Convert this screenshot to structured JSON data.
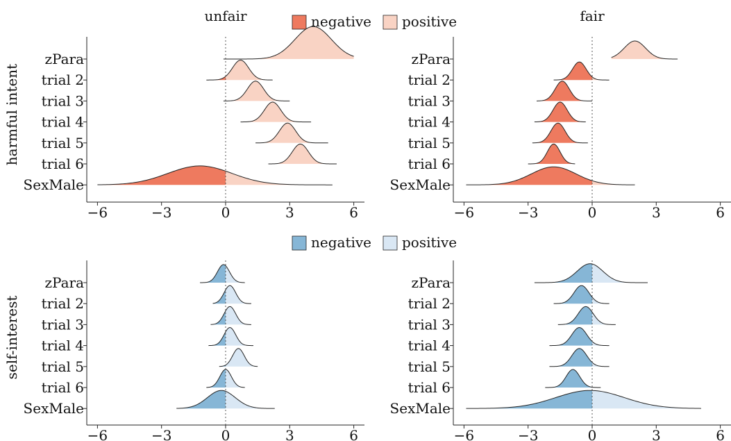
{
  "legends": [
    {
      "negative": "negative",
      "positive": "positive",
      "neg_color": "#ee7a5f",
      "pos_color": "#f9d3c4"
    },
    {
      "negative": "negative",
      "positive": "positive",
      "neg_color": "#86b6d6",
      "pos_color": "#d9e7f4"
    }
  ],
  "column_titles": [
    "unfair",
    "fair"
  ],
  "row_titles": [
    "harmful intent",
    "self-interest"
  ],
  "chart_data": [
    {
      "type": "ridgeline",
      "panel": "harmful intent / unfair",
      "row": 0,
      "col": 0,
      "title": "unfair",
      "ylabel": "harmful intent",
      "xlim": [
        -6.5,
        6.5
      ],
      "xticks": [
        -6,
        -3,
        0,
        3,
        6
      ],
      "xtick_labels": [
        "−6",
        "−3",
        "0",
        "3",
        "6"
      ],
      "reference_line": 0,
      "ridges": [
        {
          "label": "zPara",
          "mean": 4.1,
          "sd": 0.85,
          "min": -0.1,
          "max": 6.0,
          "height": 1.8
        },
        {
          "label": "trial 2",
          "mean": 0.7,
          "sd": 0.38,
          "min": -0.9,
          "max": 2.2,
          "height": 1.1
        },
        {
          "label": "trial 3",
          "mean": 1.4,
          "sd": 0.38,
          "min": -0.1,
          "max": 3.0,
          "height": 1.1
        },
        {
          "label": "trial 4",
          "mean": 2.2,
          "sd": 0.38,
          "min": 0.7,
          "max": 4.0,
          "height": 1.1
        },
        {
          "label": "trial 5",
          "mean": 2.9,
          "sd": 0.38,
          "min": 1.4,
          "max": 4.8,
          "height": 1.1
        },
        {
          "label": "trial 6",
          "mean": 3.5,
          "sd": 0.38,
          "min": 2.0,
          "max": 5.2,
          "height": 1.1
        },
        {
          "label": "SexMale",
          "mean": -1.2,
          "sd": 1.5,
          "min": -6.0,
          "max": 5.0,
          "height": 1.05
        }
      ]
    },
    {
      "type": "ridgeline",
      "panel": "harmful intent / fair",
      "row": 0,
      "col": 1,
      "title": "fair",
      "xlim": [
        -6.5,
        6.5
      ],
      "xticks": [
        -6,
        -3,
        0,
        3,
        6
      ],
      "xtick_labels": [
        "−6",
        "−3",
        "0",
        "3",
        "6"
      ],
      "reference_line": 0,
      "ridges": [
        {
          "label": "zPara",
          "mean": 2.0,
          "sd": 0.5,
          "min": 0.9,
          "max": 4.0,
          "height": 1.0
        },
        {
          "label": "trial 2",
          "mean": -0.6,
          "sd": 0.32,
          "min": -1.8,
          "max": 0.8,
          "height": 1.0
        },
        {
          "label": "trial 3",
          "mean": -1.4,
          "sd": 0.33,
          "min": -2.6,
          "max": 0.0,
          "height": 1.1
        },
        {
          "label": "trial 4",
          "mean": -1.5,
          "sd": 0.33,
          "min": -2.7,
          "max": -0.3,
          "height": 1.1
        },
        {
          "label": "trial 5",
          "mean": -1.6,
          "sd": 0.33,
          "min": -2.8,
          "max": -0.2,
          "height": 1.1
        },
        {
          "label": "trial 6",
          "mean": -1.8,
          "sd": 0.3,
          "min": -3.0,
          "max": -0.8,
          "height": 1.1
        },
        {
          "label": "SexMale",
          "mean": -1.8,
          "sd": 1.05,
          "min": -5.9,
          "max": 2.0,
          "height": 1.0
        }
      ]
    },
    {
      "type": "ridgeline",
      "panel": "self-interest / unfair",
      "row": 1,
      "col": 0,
      "ylabel": "self-interest",
      "xlim": [
        -6.5,
        6.5
      ],
      "xticks": [
        -6,
        -3,
        0,
        3,
        6
      ],
      "xtick_labels": [
        "−6",
        "−3",
        "0",
        "3",
        "6"
      ],
      "reference_line": 0,
      "ridges": [
        {
          "label": "zPara",
          "mean": -0.1,
          "sd": 0.28,
          "min": -1.2,
          "max": 0.9,
          "height": 1.0
        },
        {
          "label": "trial 2",
          "mean": 0.2,
          "sd": 0.27,
          "min": -0.6,
          "max": 1.2,
          "height": 1.0
        },
        {
          "label": "trial 3",
          "mean": 0.2,
          "sd": 0.27,
          "min": -0.7,
          "max": 1.2,
          "height": 1.0
        },
        {
          "label": "trial 4",
          "mean": 0.2,
          "sd": 0.27,
          "min": -0.8,
          "max": 1.3,
          "height": 1.0
        },
        {
          "label": "trial 5",
          "mean": 0.6,
          "sd": 0.27,
          "min": -0.3,
          "max": 1.5,
          "height": 1.0
        },
        {
          "label": "trial 6",
          "mean": 0.0,
          "sd": 0.27,
          "min": -0.9,
          "max": 0.9,
          "height": 1.0
        },
        {
          "label": "SexMale",
          "mean": -0.2,
          "sd": 0.65,
          "min": -2.3,
          "max": 2.3,
          "height": 1.0
        }
      ]
    },
    {
      "type": "ridgeline",
      "panel": "self-interest / fair",
      "row": 1,
      "col": 1,
      "xlim": [
        -6.5,
        6.5
      ],
      "xticks": [
        -6,
        -3,
        0,
        3,
        6
      ],
      "xtick_labels": [
        "−6",
        "−3",
        "0",
        "3",
        "6"
      ],
      "reference_line": 0,
      "ridges": [
        {
          "label": "zPara",
          "mean": -0.1,
          "sd": 0.6,
          "min": -2.7,
          "max": 2.6,
          "height": 1.05
        },
        {
          "label": "trial 2",
          "mean": -0.5,
          "sd": 0.35,
          "min": -1.8,
          "max": 0.8,
          "height": 1.0
        },
        {
          "label": "trial 3",
          "mean": -0.3,
          "sd": 0.35,
          "min": -1.6,
          "max": 1.1,
          "height": 1.0
        },
        {
          "label": "trial 4",
          "mean": -0.6,
          "sd": 0.35,
          "min": -2.0,
          "max": 0.8,
          "height": 1.0
        },
        {
          "label": "trial 5",
          "mean": -0.6,
          "sd": 0.35,
          "min": -2.0,
          "max": 0.8,
          "height": 1.0
        },
        {
          "label": "trial 6",
          "mean": -0.9,
          "sd": 0.32,
          "min": -2.2,
          "max": 0.4,
          "height": 1.0
        },
        {
          "label": "SexMale",
          "mean": -0.1,
          "sd": 1.6,
          "min": -5.9,
          "max": 5.1,
          "height": 1.0
        }
      ]
    }
  ]
}
